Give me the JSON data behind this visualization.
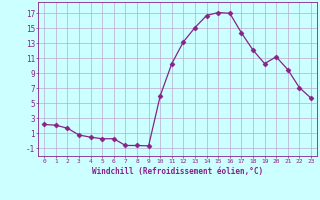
{
  "x": [
    0,
    1,
    2,
    3,
    4,
    5,
    6,
    7,
    8,
    9,
    10,
    11,
    12,
    13,
    14,
    15,
    16,
    17,
    18,
    19,
    20,
    21,
    22,
    23
  ],
  "y": [
    2.2,
    2.1,
    1.7,
    0.8,
    0.5,
    0.3,
    0.3,
    -0.6,
    -0.6,
    -0.65,
    6.0,
    10.3,
    13.2,
    15.1,
    16.7,
    17.1,
    17.0,
    14.4,
    12.1,
    10.3,
    11.2,
    9.5,
    7.1,
    5.7
  ],
  "line_color": "#882288",
  "marker": "D",
  "marker_size": 2.5,
  "bg_color": "#ccffff",
  "grid_color": "#bbaacc",
  "xlabel": "Windchill (Refroidissement éolien,°C)",
  "ylabel_ticks": [
    -1,
    1,
    3,
    5,
    7,
    9,
    11,
    13,
    15,
    17
  ],
  "xlim": [
    -0.5,
    23.5
  ],
  "ylim": [
    -2.0,
    18.5
  ],
  "title": ""
}
